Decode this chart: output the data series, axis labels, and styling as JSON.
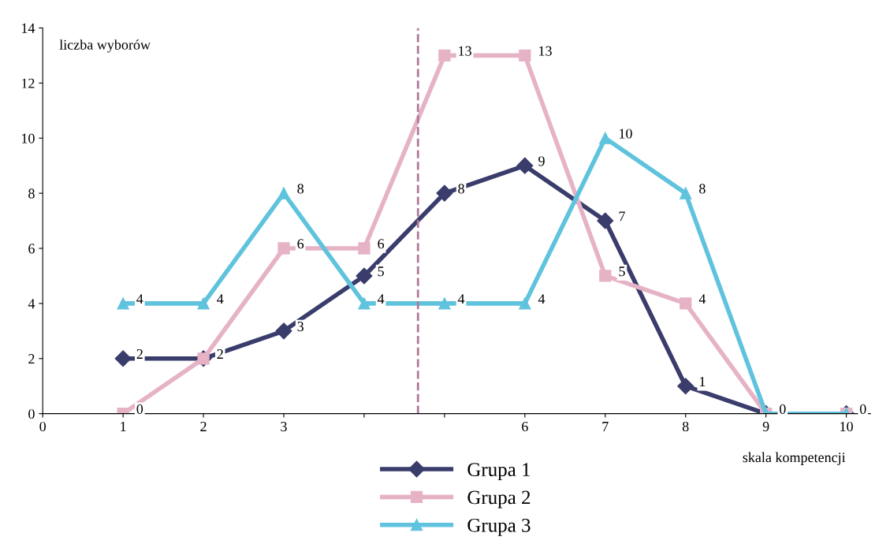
{
  "chart_data": {
    "type": "line",
    "xlabel": "skala kompetencji",
    "ylabel": "liczba wyborów",
    "x": [
      1,
      2,
      3,
      4,
      5,
      6,
      7,
      8,
      9,
      10
    ],
    "series": [
      {
        "name": "Grupa 1",
        "color": "#3a3d6b",
        "marker": "diamond",
        "values": [
          2,
          2,
          3,
          5,
          8,
          9,
          7,
          1,
          0,
          0
        ],
        "value_labels": [
          "2",
          "2",
          "3",
          "5",
          "8",
          "9",
          "7",
          "1",
          null,
          null
        ]
      },
      {
        "name": "Grupa 2",
        "color": "#e6b3c6",
        "marker": "square",
        "values": [
          0,
          2,
          6,
          6,
          13,
          13,
          5,
          4,
          0,
          0
        ],
        "value_labels": [
          "0",
          null,
          "6",
          "6",
          "13",
          "13",
          "5",
          "4",
          null,
          null
        ]
      },
      {
        "name": "Grupa 3",
        "color": "#5fc3dd",
        "marker": "triangle",
        "values": [
          4,
          4,
          8,
          4,
          4,
          4,
          10,
          8,
          0,
          0
        ],
        "value_labels": [
          "4",
          "4",
          "8",
          "4",
          "4",
          "4",
          "10",
          "8",
          "0",
          "0"
        ]
      }
    ],
    "xlim": [
      0,
      10.3
    ],
    "xticks": [
      0,
      1,
      2,
      3,
      {
        "value": 4,
        "label": null
      },
      {
        "value": 5,
        "label": null
      },
      6,
      7,
      8,
      9,
      10
    ],
    "ylim": [
      0,
      14
    ],
    "yticks": [
      0,
      2,
      4,
      6,
      8,
      10,
      12,
      14
    ],
    "ref_lines": [
      {
        "axis": "x",
        "value": 4.67,
        "color": "#b07a99",
        "line_style": "dashed"
      }
    ],
    "legend": "bottom",
    "grid": false,
    "line_style": "solid"
  }
}
